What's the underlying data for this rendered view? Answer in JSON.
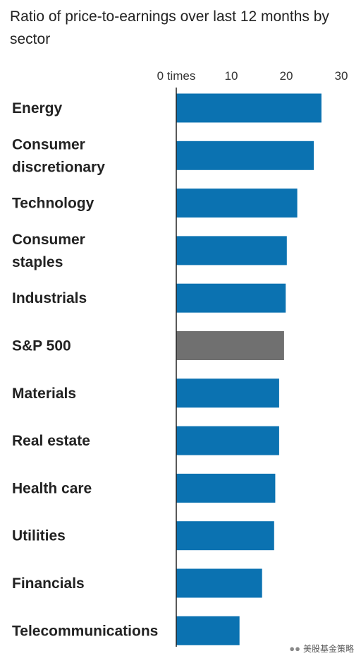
{
  "chart_data": {
    "type": "bar",
    "orientation": "horizontal",
    "title": "Ratio of price-to-earnings over last 12 months by sector",
    "x_tick_labels": [
      "0 times",
      "10",
      "20",
      "30"
    ],
    "x_ticks": [
      0,
      10,
      20,
      30
    ],
    "xlim": [
      0,
      30
    ],
    "categories": [
      [
        "Energy"
      ],
      [
        "Consumer",
        "discretionary"
      ],
      [
        "Technology"
      ],
      [
        "Consumer",
        "staples"
      ],
      [
        "Industrials"
      ],
      [
        "S&P 500"
      ],
      [
        "Materials"
      ],
      [
        "Real estate"
      ],
      [
        "Health care"
      ],
      [
        "Utilities"
      ],
      [
        "Financials"
      ],
      [
        "Telecommunications"
      ]
    ],
    "values": [
      26.4,
      25.0,
      22.0,
      20.1,
      19.9,
      19.6,
      18.7,
      18.7,
      18.0,
      17.8,
      15.6,
      11.5
    ],
    "highlight_index": 5,
    "colors": {
      "bar": "#0b72b1",
      "highlight": "#707070",
      "axis": "#222222"
    },
    "grid": false
  },
  "watermark": {
    "icon": "wechat-icon",
    "text": "美股基金策略"
  }
}
